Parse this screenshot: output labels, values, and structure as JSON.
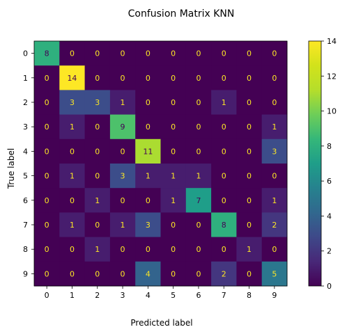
{
  "chart_data": {
    "type": "heatmap",
    "title": "Confusion Matrix KNN",
    "xlabel": "Predicted label",
    "ylabel": "True label",
    "x_categories": [
      "0",
      "1",
      "2",
      "3",
      "4",
      "5",
      "6",
      "7",
      "8",
      "9"
    ],
    "y_categories": [
      "0",
      "1",
      "2",
      "3",
      "4",
      "5",
      "6",
      "7",
      "8",
      "9"
    ],
    "values": [
      [
        8,
        0,
        0,
        0,
        0,
        0,
        0,
        0,
        0,
        0
      ],
      [
        0,
        14,
        0,
        0,
        0,
        0,
        0,
        0,
        0,
        0
      ],
      [
        0,
        3,
        3,
        1,
        0,
        0,
        0,
        1,
        0,
        0
      ],
      [
        0,
        1,
        0,
        9,
        0,
        0,
        0,
        0,
        0,
        1
      ],
      [
        0,
        0,
        0,
        0,
        11,
        0,
        0,
        0,
        0,
        3
      ],
      [
        0,
        1,
        0,
        3,
        1,
        1,
        1,
        0,
        0,
        0
      ],
      [
        0,
        0,
        1,
        0,
        0,
        1,
        7,
        0,
        0,
        1
      ],
      [
        0,
        1,
        0,
        1,
        3,
        0,
        0,
        8,
        0,
        2
      ],
      [
        0,
        0,
        1,
        0,
        0,
        0,
        0,
        0,
        1,
        0
      ],
      [
        0,
        0,
        0,
        0,
        4,
        0,
        0,
        2,
        0,
        5
      ]
    ],
    "colormap": "viridis",
    "vmin": 0,
    "vmax": 14,
    "colorbar_ticks": [
      0,
      2,
      4,
      6,
      8,
      10,
      12,
      14
    ],
    "text_color_low": "#fde725",
    "text_color_high": "#440154",
    "grid": false
  }
}
